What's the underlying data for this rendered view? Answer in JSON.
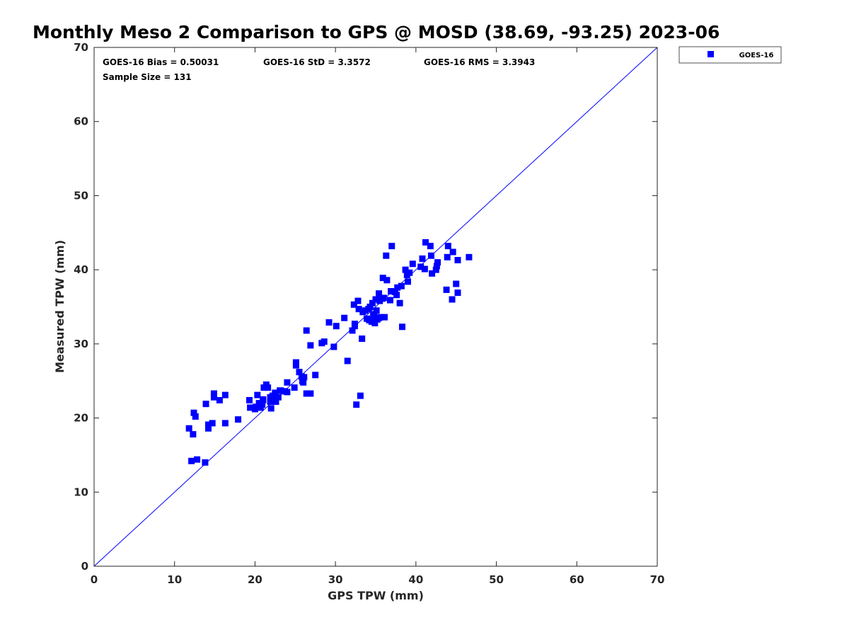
{
  "chart_data": {
    "type": "scatter",
    "title": "Monthly Meso 2 Comparison to GPS @ MOSD (38.69, -93.25) 2023-06",
    "xlabel": "GPS TPW (mm)",
    "ylabel": "Measured TPW (mm)",
    "xlim": [
      0,
      70
    ],
    "ylim": [
      0,
      70
    ],
    "xticks": [
      0,
      10,
      20,
      30,
      40,
      50,
      60,
      70
    ],
    "yticks": [
      0,
      10,
      20,
      30,
      40,
      50,
      60,
      70
    ],
    "grid": false,
    "legend_position": "outside top-right",
    "stats": {
      "bias": "GOES-16 Bias = 0.50031",
      "std": "GOES-16 StD = 3.3572",
      "rms": "GOES-16 RMS = 3.3943",
      "sample_size": "Sample Size = 131"
    },
    "reference_line": {
      "type": "one-to-one",
      "color": "#0000ff"
    },
    "series": [
      {
        "name": "GOES-16",
        "color": "#0000ff",
        "marker": "square",
        "points": [
          [
            11.8,
            18.6
          ],
          [
            12.1,
            14.2
          ],
          [
            12.4,
            20.7
          ],
          [
            12.3,
            17.8
          ],
          [
            12.6,
            20.2
          ],
          [
            12.8,
            14.4
          ],
          [
            13.9,
            21.9
          ],
          [
            13.8,
            14.0
          ],
          [
            14.2,
            19.1
          ],
          [
            14.2,
            18.6
          ],
          [
            14.7,
            19.3
          ],
          [
            14.9,
            23.3
          ],
          [
            14.9,
            22.8
          ],
          [
            15.6,
            22.4
          ],
          [
            16.3,
            23.1
          ],
          [
            16.3,
            19.3
          ],
          [
            17.9,
            19.8
          ],
          [
            19.3,
            22.4
          ],
          [
            19.4,
            21.4
          ],
          [
            20.0,
            21.2
          ],
          [
            20.1,
            21.5
          ],
          [
            20.3,
            23.1
          ],
          [
            20.5,
            22.0
          ],
          [
            20.7,
            21.4
          ],
          [
            20.9,
            21.8
          ],
          [
            21.0,
            22.4
          ],
          [
            21.0,
            22.5
          ],
          [
            21.1,
            24.1
          ],
          [
            21.4,
            24.5
          ],
          [
            21.6,
            24.1
          ],
          [
            21.9,
            22.2
          ],
          [
            21.9,
            22.8
          ],
          [
            22.0,
            21.3
          ],
          [
            22.2,
            23.0
          ],
          [
            22.3,
            22.4
          ],
          [
            22.4,
            22.2
          ],
          [
            22.5,
            23.4
          ],
          [
            22.6,
            22.2
          ],
          [
            23.1,
            23.7
          ],
          [
            23.7,
            23.6
          ],
          [
            24.0,
            24.8
          ],
          [
            24.9,
            24.1
          ],
          [
            25.1,
            27.5
          ],
          [
            25.1,
            27.1
          ],
          [
            25.5,
            26.2
          ],
          [
            25.8,
            25.6
          ],
          [
            25.9,
            25.0
          ],
          [
            26.0,
            24.8
          ],
          [
            26.1,
            25.5
          ],
          [
            26.4,
            31.8
          ],
          [
            26.4,
            23.3
          ],
          [
            26.9,
            23.3
          ],
          [
            26.9,
            29.8
          ],
          [
            27.5,
            25.8
          ],
          [
            28.3,
            30.1
          ],
          [
            28.6,
            30.3
          ],
          [
            29.2,
            32.9
          ],
          [
            29.8,
            29.6
          ],
          [
            30.1,
            32.4
          ],
          [
            31.1,
            33.5
          ],
          [
            31.5,
            27.7
          ],
          [
            32.1,
            31.8
          ],
          [
            32.3,
            35.3
          ],
          [
            32.4,
            32.7
          ],
          [
            32.4,
            32.4
          ],
          [
            32.6,
            21.8
          ],
          [
            32.8,
            35.8
          ],
          [
            32.9,
            34.7
          ],
          [
            33.1,
            23.0
          ],
          [
            33.3,
            30.7
          ],
          [
            33.4,
            34.3
          ],
          [
            33.7,
            34.5
          ],
          [
            33.9,
            33.4
          ],
          [
            34.1,
            34.7
          ],
          [
            34.2,
            33.2
          ],
          [
            34.5,
            33.0
          ],
          [
            34.6,
            35.5
          ],
          [
            34.7,
            34.0
          ],
          [
            34.8,
            33.7
          ],
          [
            34.9,
            32.8
          ],
          [
            35.0,
            36.0
          ],
          [
            35.1,
            34.5
          ],
          [
            35.2,
            33.3
          ],
          [
            35.4,
            36.8
          ],
          [
            35.5,
            35.8
          ],
          [
            35.6,
            33.6
          ],
          [
            35.8,
            36.1
          ],
          [
            35.9,
            38.9
          ],
          [
            36.0,
            36.2
          ],
          [
            36.1,
            33.6
          ],
          [
            36.3,
            41.9
          ],
          [
            36.4,
            38.6
          ],
          [
            36.8,
            35.9
          ],
          [
            36.9,
            37.1
          ],
          [
            37.0,
            43.2
          ],
          [
            37.4,
            37.0
          ],
          [
            37.6,
            36.6
          ],
          [
            37.7,
            37.6
          ],
          [
            38.0,
            35.5
          ],
          [
            38.2,
            37.8
          ],
          [
            38.3,
            32.3
          ],
          [
            38.7,
            40.0
          ],
          [
            38.9,
            39.3
          ],
          [
            39.0,
            38.4
          ],
          [
            39.2,
            39.6
          ],
          [
            39.6,
            40.8
          ],
          [
            40.6,
            40.4
          ],
          [
            40.8,
            41.5
          ],
          [
            41.1,
            40.1
          ],
          [
            41.2,
            43.7
          ],
          [
            41.8,
            43.2
          ],
          [
            41.9,
            41.9
          ],
          [
            42.0,
            39.5
          ],
          [
            42.5,
            40.0
          ],
          [
            42.6,
            40.5
          ],
          [
            42.7,
            41.0
          ],
          [
            43.8,
            37.3
          ],
          [
            43.9,
            41.7
          ],
          [
            44.0,
            43.2
          ],
          [
            44.5,
            36.0
          ],
          [
            44.6,
            42.4
          ],
          [
            45.0,
            38.1
          ],
          [
            45.2,
            36.9
          ],
          [
            45.2,
            41.3
          ],
          [
            46.6,
            41.7
          ],
          [
            24.0,
            23.5
          ],
          [
            23.2,
            23.7
          ],
          [
            22.9,
            22.8
          ],
          [
            20.6,
            21.6
          ],
          [
            34.3,
            35.0
          ],
          [
            35.4,
            33.5
          ]
        ]
      }
    ]
  }
}
